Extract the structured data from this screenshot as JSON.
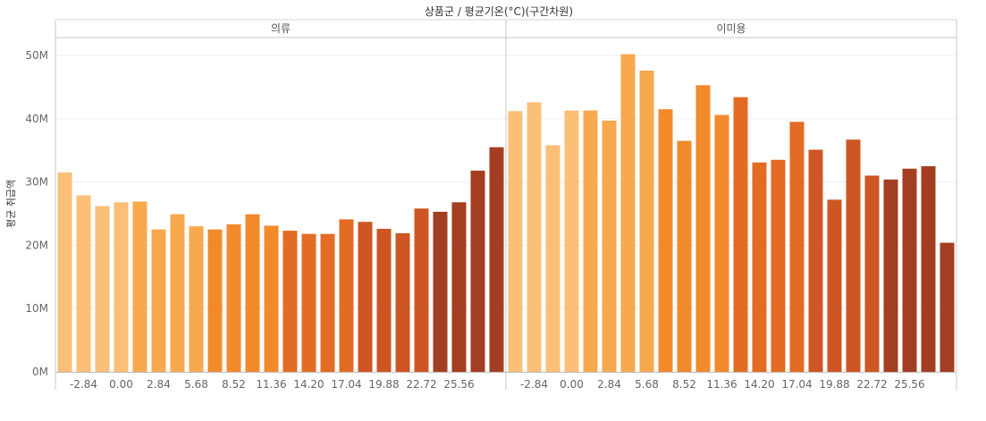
{
  "chart_data": {
    "type": "bar",
    "title": "상품군 / 평균기온(°C)(구간차원)",
    "ylabel": "평균 취급액",
    "xlabel": "",
    "ylim": [
      0,
      53
    ],
    "y_unit": "M",
    "y_ticks": [
      "0M",
      "10M",
      "20M",
      "30M",
      "40M",
      "50M"
    ],
    "y_tick_values": [
      0,
      10,
      20,
      30,
      40,
      50
    ],
    "grid": true,
    "legend": "none",
    "bin_labels": [
      "-2.84",
      "0.00",
      "2.84",
      "5.68",
      "8.52",
      "11.36",
      "14.20",
      "17.04",
      "19.88",
      "22.72",
      "25.56"
    ],
    "color_ramp": [
      "#fbbf77",
      "#f8a84d",
      "#f28a2c",
      "#e46b23",
      "#cd5624",
      "#a43e22"
    ],
    "panels": [
      {
        "header": "의류",
        "values": [
          31.5,
          27.9,
          26.2,
          26.8,
          26.9,
          22.5,
          24.9,
          23.0,
          22.5,
          23.3,
          24.9,
          23.1,
          22.3,
          21.8,
          21.8,
          24.1,
          23.7,
          22.6,
          21.9,
          25.8,
          25.3,
          26.8,
          31.8,
          35.5
        ]
      },
      {
        "header": "이미용",
        "values": [
          41.2,
          42.6,
          35.8,
          41.3,
          41.3,
          39.7,
          50.2,
          47.6,
          41.5,
          36.5,
          45.3,
          40.6,
          43.4,
          33.1,
          33.5,
          39.5,
          35.1,
          27.2,
          36.7,
          31.0,
          30.4,
          32.1,
          32.5,
          20.4
        ]
      }
    ]
  }
}
